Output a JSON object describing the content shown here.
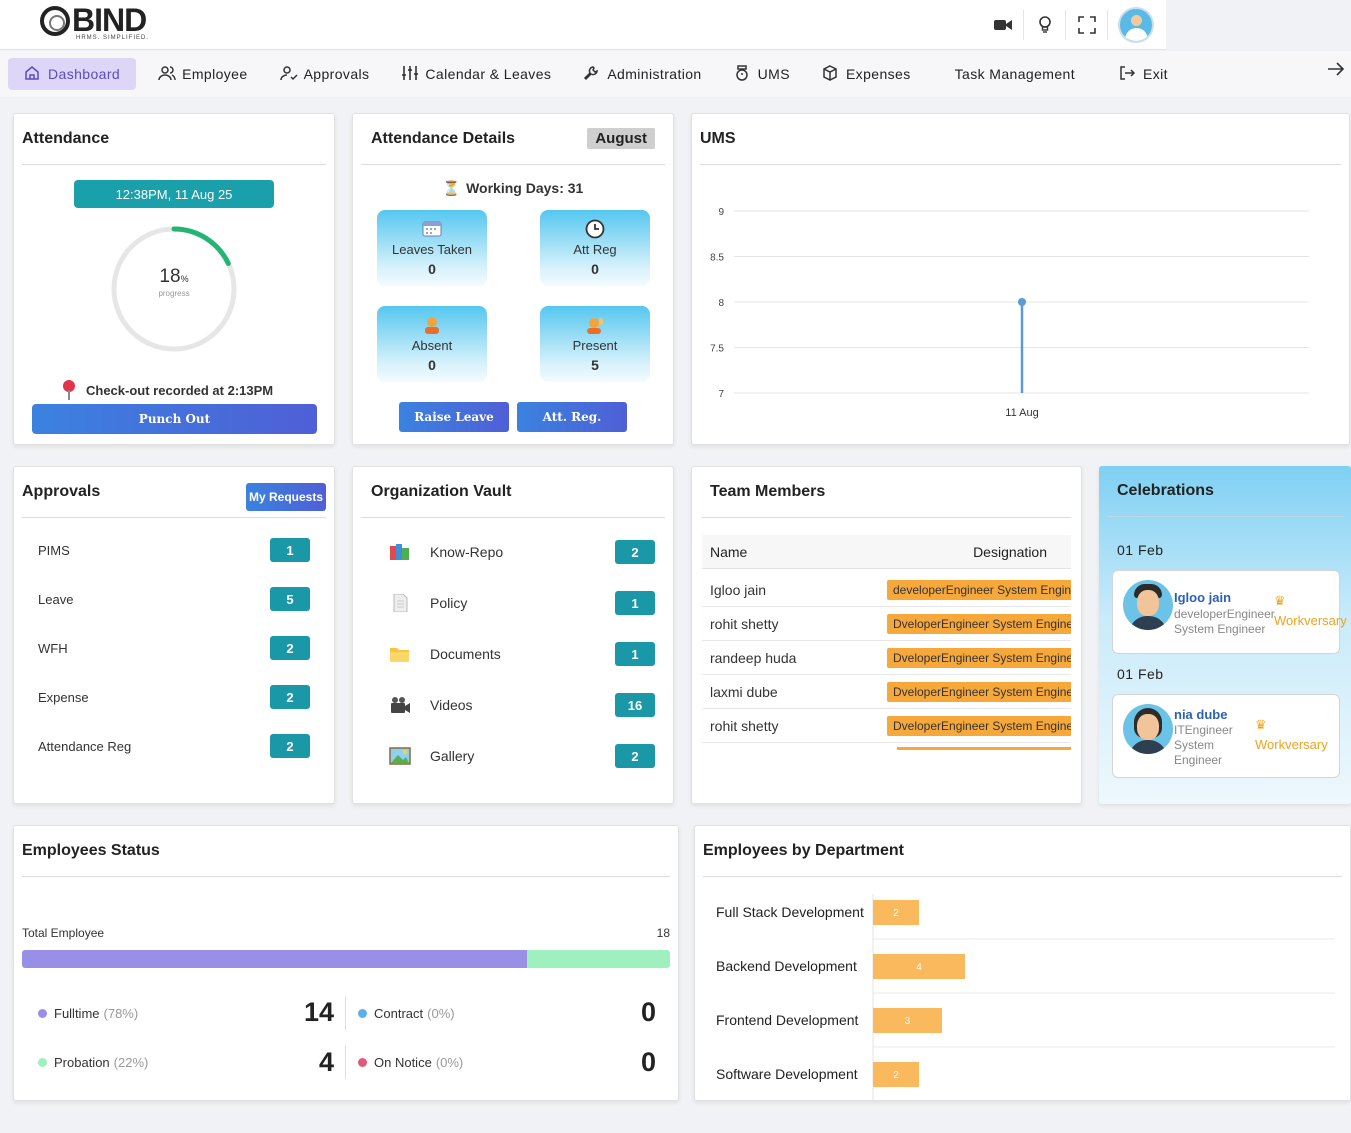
{
  "brand": {
    "name": "BIND",
    "tagline": "HRMS. SIMPLIFIED."
  },
  "top_icons": [
    "video-camera-icon",
    "lightbulb-icon",
    "fullscreen-icon",
    "user-avatar"
  ],
  "nav": [
    {
      "label": "Dashboard",
      "icon": "home-icon",
      "active": true
    },
    {
      "label": "Employee",
      "icon": "users-icon"
    },
    {
      "label": "Approvals",
      "icon": "user-check-icon"
    },
    {
      "label": "Calendar & Leaves",
      "icon": "sliders-icon"
    },
    {
      "label": "Administration",
      "icon": "wrench-icon"
    },
    {
      "label": "UMS",
      "icon": "stopwatch-icon"
    },
    {
      "label": "Expenses",
      "icon": "box-icon"
    },
    {
      "label": "Task Management",
      "icon": ""
    },
    {
      "label": "Exit",
      "icon": "logout-icon"
    }
  ],
  "attendance": {
    "title": "Attendance",
    "datetime": "12:38PM, 11 Aug 25",
    "progress_value": "18",
    "progress_unit": "%",
    "progress_label": "progress",
    "progress_fraction": 0.18,
    "checkout_text": "Check-out recorded at 2:13PM",
    "punch_label": "Punch Out"
  },
  "attendance_details": {
    "title": "Attendance Details",
    "month": "August",
    "working_days": "Working Days: 31",
    "tiles": [
      {
        "label": "Leaves Taken",
        "value": "0",
        "icon": "calendar-icon"
      },
      {
        "label": "Att Reg",
        "value": "0",
        "icon": "clock-icon"
      },
      {
        "label": "Absent",
        "value": "0",
        "icon": "person-absent-icon"
      },
      {
        "label": "Present",
        "value": "5",
        "icon": "person-present-icon"
      }
    ],
    "buttons": {
      "raise_leave": "Raise Leave",
      "att_reg": "Att. Reg."
    }
  },
  "ums": {
    "title": "UMS"
  },
  "chart_data": {
    "type": "line",
    "title": "UMS",
    "xlabel": "",
    "ylabel": "",
    "x": [
      "11 Aug"
    ],
    "series": [
      {
        "values": [
          8
        ]
      }
    ],
    "yticks": [
      "9",
      "8.5",
      "8",
      "7.5",
      "7"
    ],
    "ylim": [
      7,
      9
    ],
    "grid": true,
    "color": "#5b9bd5"
  },
  "approvals": {
    "title": "Approvals",
    "my_requests": "My Requests",
    "rows": [
      {
        "label": "PIMS",
        "count": "1"
      },
      {
        "label": "Leave",
        "count": "5"
      },
      {
        "label": "WFH",
        "count": "2"
      },
      {
        "label": "Expense",
        "count": "2"
      },
      {
        "label": "Attendance Reg",
        "count": "2"
      }
    ]
  },
  "vault": {
    "title": "Organization Vault",
    "rows": [
      {
        "label": "Know-Repo",
        "count": "2",
        "icon": "books-icon"
      },
      {
        "label": "Policy",
        "count": "1",
        "icon": "document-icon"
      },
      {
        "label": "Documents",
        "count": "1",
        "icon": "folder-icon"
      },
      {
        "label": "Videos",
        "count": "16",
        "icon": "video-camera-icon"
      },
      {
        "label": "Gallery",
        "count": "2",
        "icon": "image-icon"
      }
    ]
  },
  "team": {
    "title": "Team Members",
    "headers": [
      "Name",
      "Designation"
    ],
    "rows": [
      {
        "name": "Igloo jain",
        "designation": "developerEngineer System Engineer"
      },
      {
        "name": "rohit shetty",
        "designation": "DveloperEngineer System Engineer"
      },
      {
        "name": "randeep huda",
        "designation": "DveloperEngineer System Engineer"
      },
      {
        "name": "laxmi dube",
        "designation": "DveloperEngineer System Engineer"
      },
      {
        "name": "rohit shetty",
        "designation": "DveloperEngineer System Engineer"
      }
    ]
  },
  "celebrations": {
    "title": "Celebrations",
    "items": [
      {
        "date": "01 Feb",
        "name": "Igloo jain",
        "designation": "developerEngineer System Engineer",
        "event": "Workversary"
      },
      {
        "date": "01 Feb",
        "name": "nia dube",
        "designation": "ITEngineer System Engineer",
        "event": "Workversary"
      }
    ]
  },
  "employees_status": {
    "title": "Employees Status",
    "total_label": "Total Employee",
    "total": "18",
    "fulltime_fraction": 0.78,
    "stats": [
      {
        "label": "Fulltime",
        "pct": "(78%)",
        "value": "14",
        "color": "#9a8fe6"
      },
      {
        "label": "Contract",
        "pct": "(0%)",
        "value": "0",
        "color": "#5ab0e8"
      },
      {
        "label": "Probation",
        "pct": "(22%)",
        "value": "4",
        "color": "#9ff0bf"
      },
      {
        "label": "On Notice",
        "pct": "(0%)",
        "value": "0",
        "color": "#e05a7a"
      }
    ]
  },
  "departments": {
    "title": "Employees by Department",
    "chart_data": {
      "type": "bar",
      "orientation": "horizontal",
      "categories": [
        "Full Stack Development",
        "Backend Development",
        "Frontend Development",
        "Software Development"
      ],
      "values": [
        2,
        4,
        3,
        2
      ],
      "color": "#f9b95c"
    }
  }
}
